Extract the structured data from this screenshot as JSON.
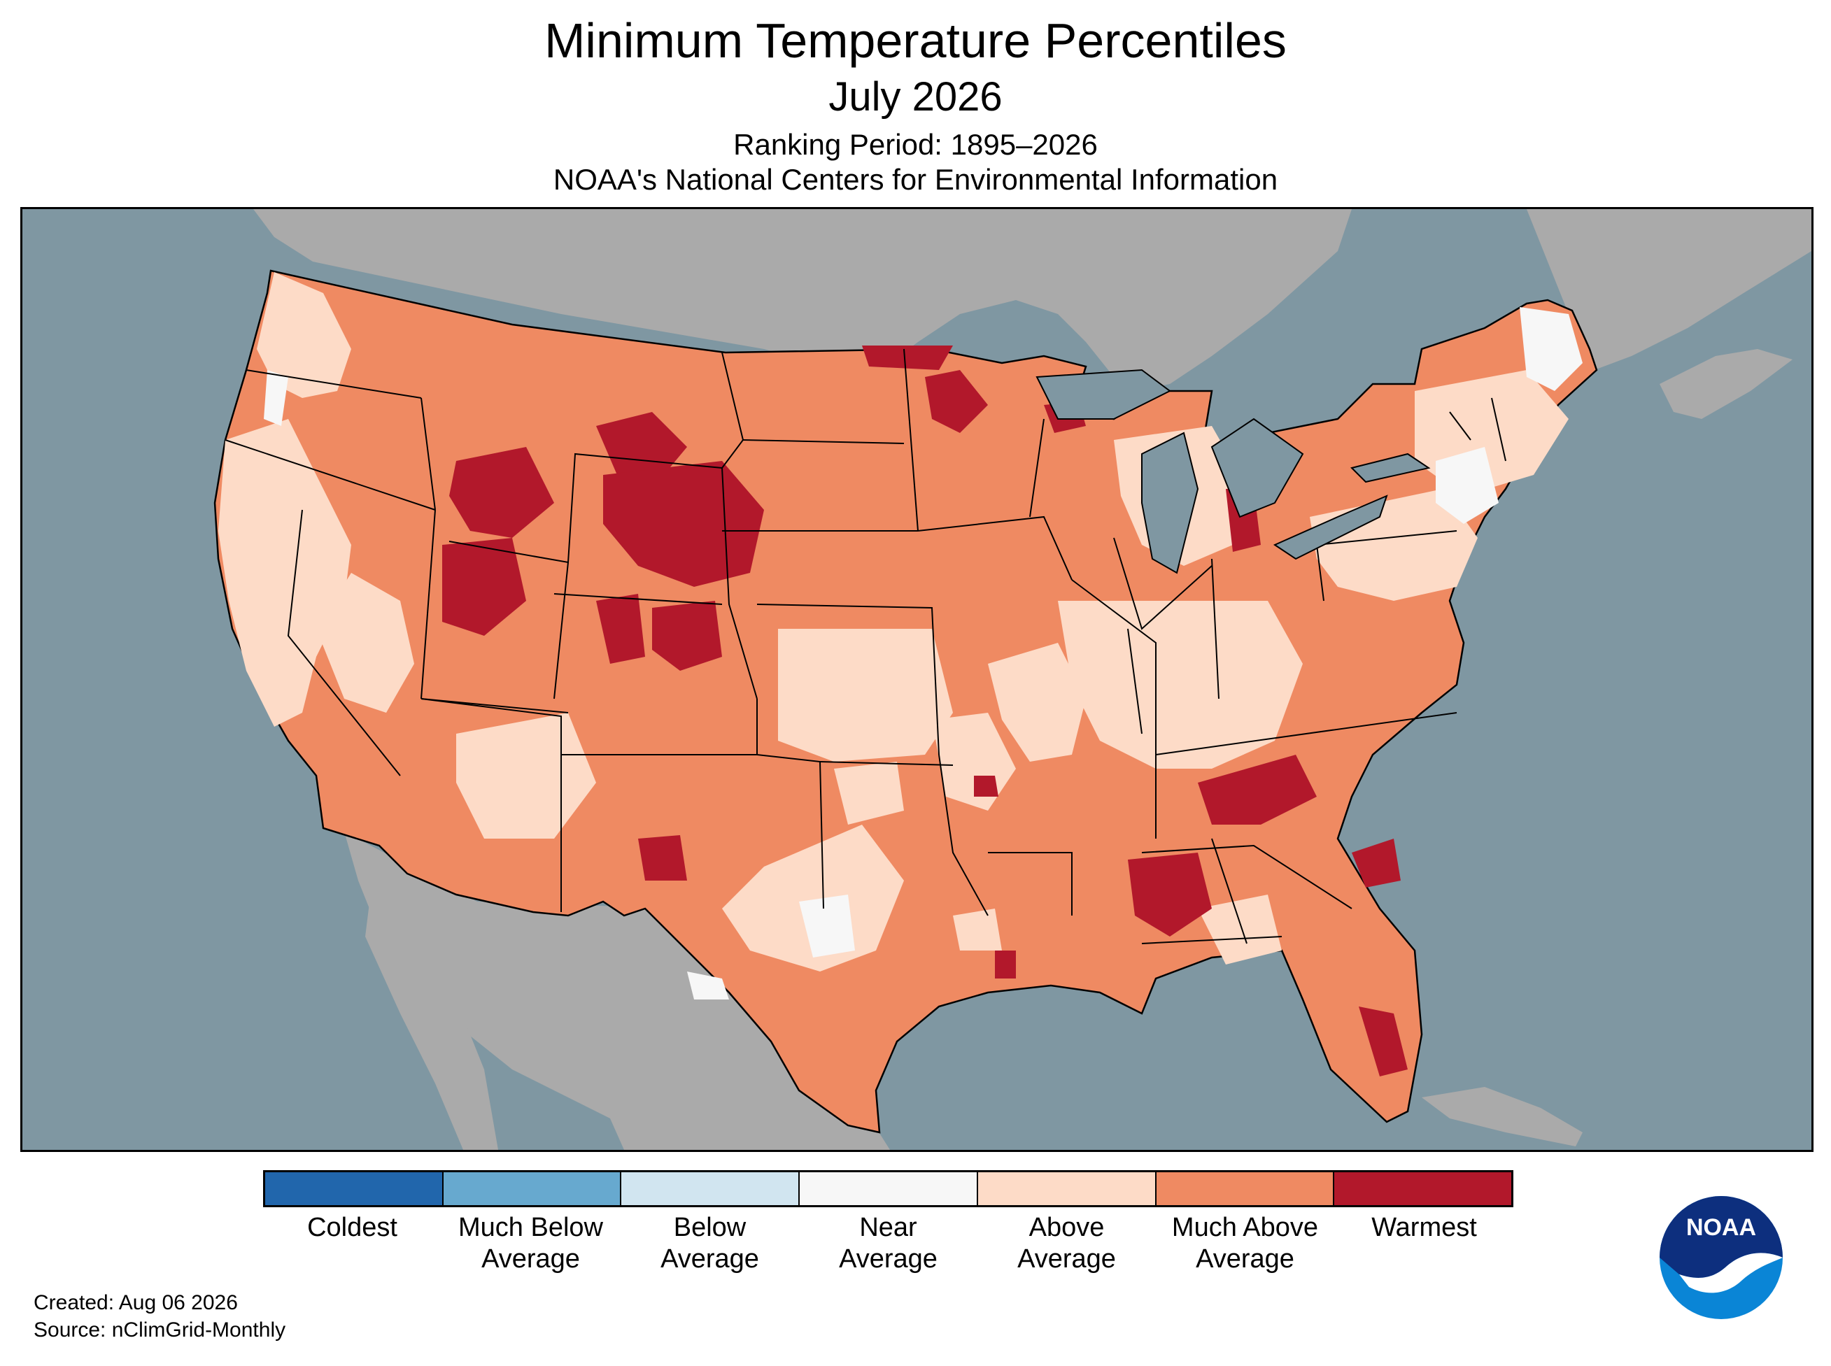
{
  "title": "Minimum Temperature Percentiles",
  "subtitle": "July 2026",
  "ranking_period": "Ranking Period: 1895–2026",
  "organization": "NOAA's National Centers for Environmental Information",
  "legend": [
    {
      "l1": "Coldest",
      "l2": "",
      "color": "#2166ac"
    },
    {
      "l1": "Much Below",
      "l2": "Average",
      "color": "#67a9cf"
    },
    {
      "l1": "Below",
      "l2": "Average",
      "color": "#d1e5f0"
    },
    {
      "l1": "Near",
      "l2": "Average",
      "color": "#f7f7f7"
    },
    {
      "l1": "Above",
      "l2": "Average",
      "color": "#fddbc7"
    },
    {
      "l1": "Much Above",
      "l2": "Average",
      "color": "#ef8a62"
    },
    {
      "l1": "Warmest",
      "l2": "",
      "color": "#b2182b"
    }
  ],
  "footer": {
    "created": "Created: Aug 06 2026",
    "source": "Source: nClimGrid-Monthly"
  },
  "logo": {
    "text": "NOAA",
    "icon": "noaa-logo-icon"
  },
  "colors": {
    "water": "#7f97a2",
    "land_outside": "#aaaaaa",
    "state_border": "#000000"
  }
}
